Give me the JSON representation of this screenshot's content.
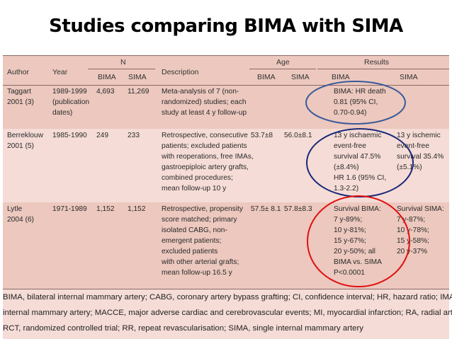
{
  "title": "Studies comparing BIMA with SIMA",
  "header": {
    "author": "Author",
    "year": "Year",
    "n": "N",
    "n_bima": "BIMA",
    "n_sima": "SIMA",
    "description": "Description",
    "age": "Age",
    "age_bima": "BIMA",
    "age_sima": "SIMA",
    "results": "Results",
    "res_bima": "BIMA",
    "res_sima": "SIMA"
  },
  "rows": [
    {
      "author": [
        "Taggart",
        "2001 (3)"
      ],
      "year": [
        "1989-1999",
        "(publication",
        "dates)"
      ],
      "n_bima": "4,693",
      "n_sima": "11,269",
      "description": [
        "Meta-analysis of 7 (non-",
        "randomized) studies; each",
        "study at least 4 y follow-up"
      ],
      "age_bima": "",
      "age_sima": "",
      "res_bima": [
        "BIMA: HR death",
        "0.81 (95% CI,",
        "0.70-0.94)"
      ],
      "res_sima": []
    },
    {
      "author": [
        "Berreklouw",
        "2001 (5)"
      ],
      "year": [
        "1985-1990"
      ],
      "n_bima": "249",
      "n_sima": "233",
      "description": [
        "Retrospective, consecutive",
        "patients; excluded patients",
        "with reoperations, free IMAs,",
        "gastroepiploic artery grafts,",
        "combined procedures;",
        "mean follow-up 10 y"
      ],
      "age_bima": "53.7±8",
      "age_sima": "56.0±8.1",
      "res_bima": [
        "13 y ischaemic",
        "event-free",
        "survival 47.5%",
        "(±8.4%)",
        "HR 1.6 (95% CI,",
        "1.3-2.2)"
      ],
      "res_sima": [
        "13 y ischemic",
        "event-free",
        "survival 35.4%",
        "(±5.1%)"
      ]
    },
    {
      "author": [
        "Lytle",
        "2004 (6)"
      ],
      "year": [
        "1971-1989"
      ],
      "n_bima": "1,152",
      "n_sima": "1,152",
      "description": [
        "Retrospective, propensity",
        "score matched; primary",
        "isolated CABG, non-",
        "emergent patients;",
        "excluded patients",
        "with other arterial grafts;",
        "mean follow-up 16.5 y"
      ],
      "age_bima": "57.5± 8.1",
      "age_sima": "57.8±8.3",
      "res_bima": [
        "Survival BIMA:",
        "7 y-89%;",
        "10 y-81%;",
        "15 y-67%;",
        "20 y-50%; all",
        "BIMA vs. SIMA",
        "P<0.0001"
      ],
      "res_sima": [
        "Survival SIMA:",
        "7 y-87%;",
        "10 y-78%;",
        "15 y-58%;",
        "20 y-37%"
      ]
    }
  ],
  "footnote": [
    "BIMA, bilateral internal mammary artery; CABG, coronary artery bypass grafting; CI, confidence interval; HR, hazard ratio; IMA,",
    "internal mammary artery; MACCE, major adverse cardiac and cerebrovascular events; MI, myocardial infarction; RA, radial artery;",
    "RCT, randomized controlled trial; RR, repeat revascularisation; SIMA, single internal mammary artery"
  ],
  "annotation_colors": {
    "blue": "#3a5a9a",
    "navy": "#1a2a7a",
    "red": "#e01010"
  }
}
